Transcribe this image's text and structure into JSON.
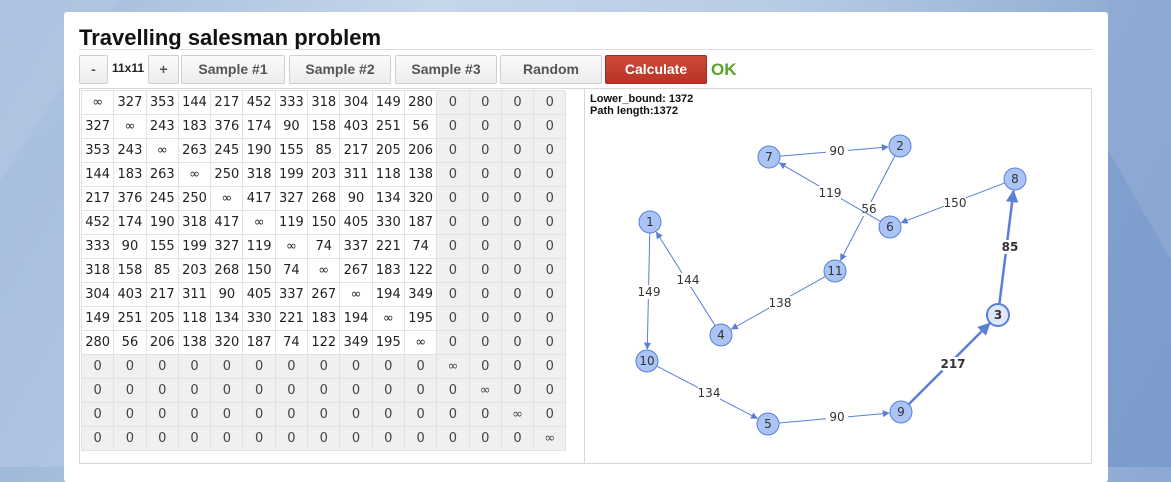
{
  "title": "Travelling salesman problem",
  "toolbar": {
    "minus_label": "-",
    "size_label": "11x11",
    "plus_label": "+",
    "sample1_label": "Sample #1",
    "sample2_label": "Sample #2",
    "sample3_label": "Sample #3",
    "random_label": "Random",
    "calculate_label": "Calculate",
    "status": "OK"
  },
  "colors": {
    "accent_red": "#c0392b",
    "ok_green": "#5aa02c",
    "node_fill": "#a9c4f5",
    "edge": "#5a7fd6"
  },
  "graph_info": {
    "lower_bound": "Lower_bound: 1372",
    "path_length": "Path length:1372"
  },
  "matrix": {
    "active_size": 11,
    "rows": [
      [
        "∞",
        "327",
        "353",
        "144",
        "217",
        "452",
        "333",
        "318",
        "304",
        "149",
        "280",
        "0",
        "0",
        "0",
        "0"
      ],
      [
        "327",
        "∞",
        "243",
        "183",
        "376",
        "174",
        "90",
        "158",
        "403",
        "251",
        "56",
        "0",
        "0",
        "0",
        "0"
      ],
      [
        "353",
        "243",
        "∞",
        "263",
        "245",
        "190",
        "155",
        "85",
        "217",
        "205",
        "206",
        "0",
        "0",
        "0",
        "0"
      ],
      [
        "144",
        "183",
        "263",
        "∞",
        "250",
        "318",
        "199",
        "203",
        "311",
        "118",
        "138",
        "0",
        "0",
        "0",
        "0"
      ],
      [
        "217",
        "376",
        "245",
        "250",
        "∞",
        "417",
        "327",
        "268",
        "90",
        "134",
        "320",
        "0",
        "0",
        "0",
        "0"
      ],
      [
        "452",
        "174",
        "190",
        "318",
        "417",
        "∞",
        "119",
        "150",
        "405",
        "330",
        "187",
        "0",
        "0",
        "0",
        "0"
      ],
      [
        "333",
        "90",
        "155",
        "199",
        "327",
        "119",
        "∞",
        "74",
        "337",
        "221",
        "74",
        "0",
        "0",
        "0",
        "0"
      ],
      [
        "318",
        "158",
        "85",
        "203",
        "268",
        "150",
        "74",
        "∞",
        "267",
        "183",
        "122",
        "0",
        "0",
        "0",
        "0"
      ],
      [
        "304",
        "403",
        "217",
        "311",
        "90",
        "405",
        "337",
        "267",
        "∞",
        "194",
        "349",
        "0",
        "0",
        "0",
        "0"
      ],
      [
        "149",
        "251",
        "205",
        "118",
        "134",
        "330",
        "221",
        "183",
        "194",
        "∞",
        "195",
        "0",
        "0",
        "0",
        "0"
      ],
      [
        "280",
        "56",
        "206",
        "138",
        "320",
        "187",
        "74",
        "122",
        "349",
        "195",
        "∞",
        "0",
        "0",
        "0",
        "0"
      ],
      [
        "0",
        "0",
        "0",
        "0",
        "0",
        "0",
        "0",
        "0",
        "0",
        "0",
        "0",
        "∞",
        "0",
        "0",
        "0"
      ],
      [
        "0",
        "0",
        "0",
        "0",
        "0",
        "0",
        "0",
        "0",
        "0",
        "0",
        "0",
        "0",
        "∞",
        "0",
        "0"
      ],
      [
        "0",
        "0",
        "0",
        "0",
        "0",
        "0",
        "0",
        "0",
        "0",
        "0",
        "0",
        "0",
        "0",
        "∞",
        "0"
      ],
      [
        "0",
        "0",
        "0",
        "0",
        "0",
        "0",
        "0",
        "0",
        "0",
        "0",
        "0",
        "0",
        "0",
        "0",
        "∞"
      ]
    ]
  },
  "graph": {
    "nodes": [
      {
        "id": "1",
        "label": "1"
      },
      {
        "id": "2",
        "label": "2"
      },
      {
        "id": "3",
        "label": "3",
        "highlight": true
      },
      {
        "id": "4",
        "label": "4"
      },
      {
        "id": "5",
        "label": "5"
      },
      {
        "id": "6",
        "label": "6"
      },
      {
        "id": "7",
        "label": "7"
      },
      {
        "id": "8",
        "label": "8"
      },
      {
        "id": "9",
        "label": "9"
      },
      {
        "id": "10",
        "label": "10"
      },
      {
        "id": "11",
        "label": "11"
      }
    ],
    "edges": [
      {
        "from": "7",
        "to": "2",
        "label": "90"
      },
      {
        "from": "2",
        "to": "11",
        "label": "56"
      },
      {
        "from": "11",
        "to": "4",
        "label": "138"
      },
      {
        "from": "4",
        "to": "1",
        "label": "144"
      },
      {
        "from": "1",
        "to": "10",
        "label": "149"
      },
      {
        "from": "10",
        "to": "5",
        "label": "134"
      },
      {
        "from": "5",
        "to": "9",
        "label": "90"
      },
      {
        "from": "9",
        "to": "3",
        "label": "217",
        "bold": true
      },
      {
        "from": "3",
        "to": "8",
        "label": "85",
        "bold": true
      },
      {
        "from": "8",
        "to": "6",
        "label": "150"
      },
      {
        "from": "6",
        "to": "7",
        "label": "119"
      }
    ]
  }
}
